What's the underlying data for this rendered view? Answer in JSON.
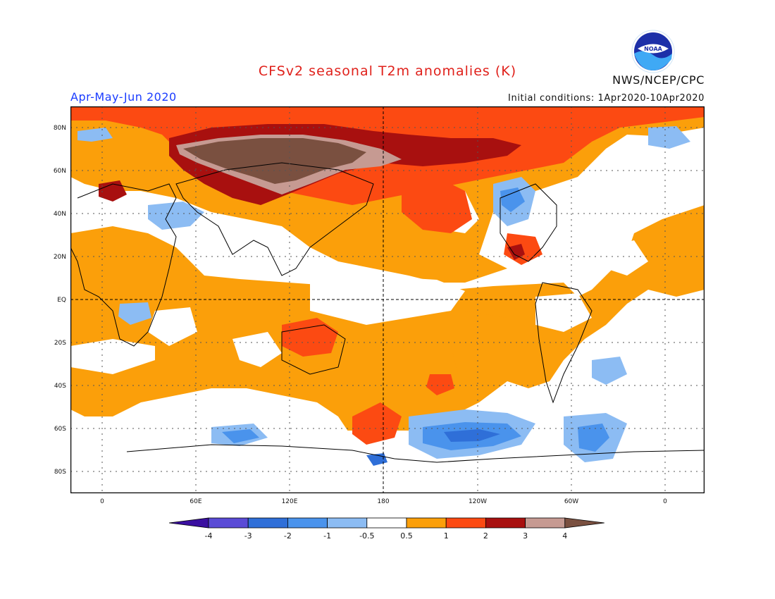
{
  "title": "CFSv2 seasonal T2m anomalies (K)",
  "season": "Apr-May-Jun 2020",
  "initial_conditions": "Initial conditions: 1Apr2020-10Apr2020",
  "agency": "NWS/NCEP/CPC",
  "logo_text": "NOAA",
  "map": {
    "lat_labels": [
      "80N",
      "60N",
      "40N",
      "20N",
      "EQ",
      "20S",
      "40S",
      "60S",
      "80S"
    ],
    "lon_labels": [
      "0",
      "60E",
      "120E",
      "180",
      "120W",
      "60W",
      "0"
    ]
  },
  "colorbar": {
    "labels": [
      "-4",
      "-3",
      "-2",
      "-1",
      "-0.5",
      "0.5",
      "1",
      "2",
      "3",
      "4"
    ],
    "colors": [
      "#3a0fa0",
      "#5a4bd6",
      "#2f6fd8",
      "#4a93ec",
      "#8cbcf3",
      "#ffffff",
      "#fb9f0a",
      "#fc4a12",
      "#a8100f",
      "#c69a92",
      "#7a5040"
    ]
  }
}
